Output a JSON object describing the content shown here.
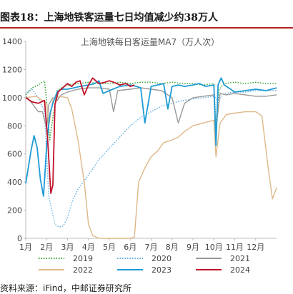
{
  "header": {
    "title": "图表18：上海地铁客运量七日均值减少约38万人"
  },
  "footer": {
    "source": "资料来源：iFind，中邮证券研究所"
  },
  "chart_data": {
    "type": "line",
    "title": "上海地铁每日客运量MA7（万人次）",
    "ylim": [
      0,
      1400
    ],
    "yticks": [
      0,
      200,
      400,
      600,
      800,
      1000,
      1200,
      1400
    ],
    "xlim": [
      1,
      13
    ],
    "xticks": [
      1,
      2,
      3,
      4,
      5,
      6,
      7,
      8,
      9,
      10,
      11,
      12
    ],
    "xtick_labels": [
      "1月",
      "2月",
      "3月",
      "4月",
      "5月",
      "6月",
      "7月",
      "8月",
      "9月",
      "10月",
      "11月",
      "12月"
    ],
    "grid": false,
    "legend_position": "bottom",
    "series": [
      {
        "name": "2019",
        "color": "#2ca02c",
        "dash": "dotted",
        "x": [
          1,
          1.3,
          1.6,
          1.9,
          2.05,
          2.15,
          2.3,
          2.5,
          2.7,
          3.0,
          3.5,
          4,
          4.5,
          5,
          5.5,
          6,
          6.5,
          7,
          7.5,
          8,
          8.5,
          9,
          9.5,
          10,
          10.1,
          10.25,
          10.5,
          11,
          11.5,
          12,
          12.5,
          13
        ],
        "y": [
          1020,
          1070,
          1090,
          1120,
          900,
          700,
          860,
          1050,
          1070,
          1090,
          1100,
          1110,
          1100,
          1100,
          1110,
          1100,
          1110,
          1110,
          1100,
          1110,
          1100,
          1100,
          1090,
          1100,
          800,
          1060,
          1100,
          1110,
          1100,
          1110,
          1100,
          1100
        ]
      },
      {
        "name": "2020",
        "color": "#5dade2",
        "dash": "dotted",
        "x": [
          1,
          1.3,
          1.6,
          1.9,
          2.1,
          2.4,
          2.6,
          2.8,
          3.0,
          3.2,
          3.5,
          4,
          4.5,
          5,
          5.5,
          6,
          6.5,
          7,
          7.5,
          8,
          8.5,
          9,
          9.5,
          10,
          10.2,
          10.5,
          11,
          11.5,
          12,
          12.5,
          13
        ],
        "y": [
          1030,
          1060,
          1000,
          900,
          300,
          100,
          80,
          90,
          150,
          250,
          350,
          450,
          560,
          640,
          720,
          800,
          860,
          900,
          940,
          960,
          980,
          990,
          1000,
          1010,
          980,
          1030,
          1040,
          1040,
          1050,
          1050,
          1050
        ]
      },
      {
        "name": "2021",
        "color": "#999999",
        "dash": "solid",
        "x": [
          1,
          1.3,
          1.6,
          1.8,
          2.0,
          2.1,
          2.3,
          2.5,
          2.7,
          3.0,
          3.5,
          4,
          4.5,
          5,
          5.2,
          5.4,
          6,
          6.5,
          7,
          7.5,
          8,
          8.3,
          8.6,
          9,
          9.5,
          10,
          10.1,
          10.3,
          10.6,
          11,
          11.5,
          12,
          12.5,
          13
        ],
        "y": [
          1010,
          960,
          900,
          900,
          780,
          950,
          1000,
          980,
          1020,
          1040,
          1060,
          1070,
          1070,
          1060,
          900,
          1050,
          1060,
          1070,
          1060,
          1050,
          1000,
          820,
          960,
          1000,
          1010,
          1020,
          780,
          1030,
          1020,
          1030,
          1020,
          1010,
          1010,
          1020
        ]
      },
      {
        "name": "2022",
        "color": "#deb887",
        "dash": "solid",
        "x": [
          1,
          1.5,
          2,
          2.1,
          2.3,
          2.6,
          3,
          3.2,
          3.5,
          3.8,
          4.0,
          4.2,
          4.5,
          5,
          5.5,
          6,
          6.2,
          6.4,
          6.7,
          7,
          7.3,
          7.6,
          8,
          8.3,
          8.6,
          9,
          9.5,
          10,
          10.1,
          10.3,
          10.6,
          11,
          11.5,
          12,
          12.3,
          12.6,
          12.8,
          12.9,
          13
        ],
        "y": [
          1000,
          1010,
          960,
          800,
          980,
          1010,
          1000,
          920,
          700,
          400,
          100,
          20,
          0,
          0,
          0,
          0,
          10,
          400,
          500,
          580,
          620,
          680,
          700,
          720,
          760,
          800,
          820,
          840,
          580,
          820,
          880,
          890,
          900,
          900,
          870,
          500,
          280,
          320,
          360
        ]
      },
      {
        "name": "2023",
        "color": "#1f9bd6",
        "dash": "solid",
        "x": [
          1,
          1.1,
          1.25,
          1.4,
          1.55,
          1.7,
          1.85,
          2.0,
          2.15,
          2.3,
          2.5,
          2.7,
          3.0,
          3.3,
          3.6,
          4,
          4.3,
          4.5,
          4.7,
          5,
          5.5,
          6,
          6.3,
          6.5,
          6.7,
          7,
          7.3,
          7.6,
          7.8,
          8,
          8.3,
          8.6,
          9,
          9.3,
          9.6,
          10,
          10.1,
          10.2,
          10.35,
          10.5,
          10.8,
          11,
          11.5,
          12,
          12.5,
          13
        ],
        "y": [
          390,
          480,
          620,
          730,
          640,
          420,
          300,
          660,
          880,
          960,
          1040,
          1060,
          1060,
          1070,
          1080,
          1090,
          1100,
          1120,
          1030,
          1050,
          1080,
          1090,
          1080,
          1070,
          820,
          1080,
          1090,
          1100,
          920,
          1080,
          1090,
          1080,
          1090,
          1100,
          1080,
          1090,
          660,
          1090,
          1140,
          1090,
          1060,
          1040,
          1050,
          1060,
          1050,
          1070
        ]
      },
      {
        "name": "2024",
        "color": "#c0122b",
        "dash": "solid",
        "x": [
          1,
          1.3,
          1.6,
          1.9,
          2.05,
          2.2,
          2.3,
          2.4,
          2.55,
          2.7,
          3.0,
          3.2,
          3.4,
          3.6,
          3.8,
          4.0,
          4.2,
          4.5,
          4.8,
          5.0,
          5.2,
          5.5,
          5.8,
          6.0,
          6.2
        ],
        "y": [
          1000,
          970,
          960,
          980,
          700,
          320,
          380,
          950,
          1040,
          1060,
          1100,
          1080,
          1110,
          1120,
          1020,
          1090,
          1140,
          1100,
          1110,
          1120,
          1110,
          1090,
          1100,
          1080,
          1090
        ]
      }
    ]
  }
}
